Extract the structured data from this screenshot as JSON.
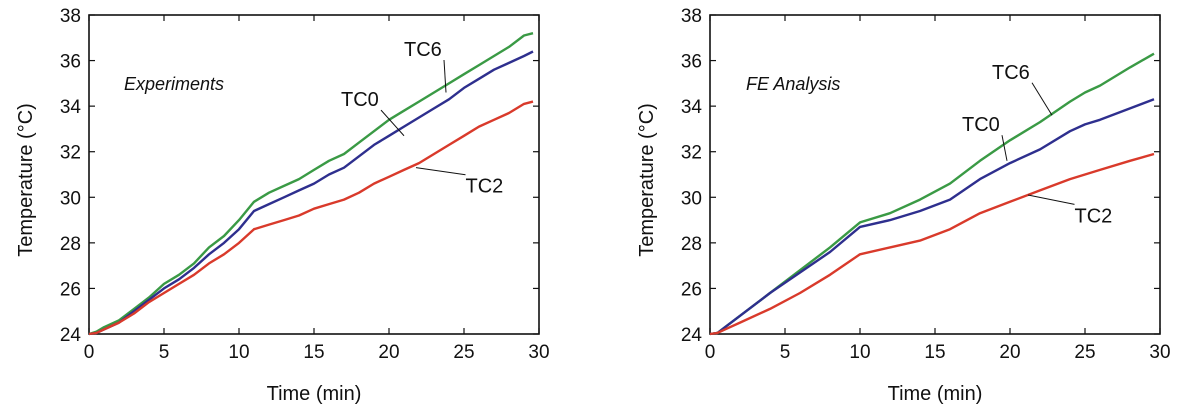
{
  "chart_data": [
    {
      "type": "line",
      "title": "Experiments",
      "xlabel": "Time (min)",
      "ylabel": "Temperature (°C)",
      "xlim": [
        0,
        30
      ],
      "ylim": [
        24,
        38
      ],
      "xticks": [
        0,
        5,
        10,
        15,
        20,
        25,
        30
      ],
      "yticks": [
        24,
        26,
        28,
        30,
        32,
        34,
        36,
        38
      ],
      "grid": false,
      "series": [
        {
          "name": "TC6",
          "color": "#3a9a45",
          "label_at": [
            21.0,
            36.2
          ],
          "leader_to": [
            23.8,
            34.6
          ],
          "x": [
            0,
            0.5,
            1,
            2,
            3,
            4,
            5,
            6,
            7,
            8,
            9,
            10,
            11,
            12,
            13,
            14,
            15,
            16,
            17,
            18,
            19,
            20,
            21,
            22,
            23,
            24,
            25,
            26,
            27,
            28,
            29,
            29.6
          ],
          "y": [
            24.0,
            24.1,
            24.3,
            24.6,
            25.1,
            25.6,
            26.2,
            26.6,
            27.1,
            27.8,
            28.3,
            29.0,
            29.8,
            30.2,
            30.5,
            30.8,
            31.2,
            31.6,
            31.9,
            32.4,
            32.9,
            33.4,
            33.8,
            34.2,
            34.6,
            35.0,
            35.4,
            35.8,
            36.2,
            36.6,
            37.1,
            37.2
          ]
        },
        {
          "name": "TC0",
          "color": "#2e2f8e",
          "label_at": [
            16.8,
            34.0
          ],
          "leader_to": [
            21.0,
            32.7
          ],
          "x": [
            0,
            0.5,
            1,
            2,
            3,
            4,
            5,
            6,
            7,
            8,
            9,
            10,
            11,
            12,
            13,
            14,
            15,
            16,
            17,
            18,
            19,
            20,
            21,
            22,
            23,
            24,
            25,
            26,
            27,
            28,
            29,
            29.6
          ],
          "y": [
            24.0,
            24.05,
            24.2,
            24.5,
            25.0,
            25.5,
            26.0,
            26.4,
            26.9,
            27.5,
            28.0,
            28.6,
            29.4,
            29.7,
            30.0,
            30.3,
            30.6,
            31.0,
            31.3,
            31.8,
            32.3,
            32.7,
            33.1,
            33.5,
            33.9,
            34.3,
            34.8,
            35.2,
            35.6,
            35.9,
            36.2,
            36.4
          ]
        },
        {
          "name": "TC2",
          "color": "#d93a2b",
          "label_at": [
            25.1,
            30.2
          ],
          "leader_to": [
            21.8,
            31.3
          ],
          "x": [
            0,
            0.5,
            1,
            2,
            3,
            4,
            5,
            6,
            7,
            8,
            9,
            10,
            11,
            12,
            13,
            14,
            15,
            16,
            17,
            18,
            19,
            20,
            21,
            22,
            23,
            24,
            25,
            26,
            27,
            28,
            29,
            29.6
          ],
          "y": [
            24.0,
            24.05,
            24.2,
            24.5,
            24.9,
            25.4,
            25.8,
            26.2,
            26.6,
            27.1,
            27.5,
            28.0,
            28.6,
            28.8,
            29.0,
            29.2,
            29.5,
            29.7,
            29.9,
            30.2,
            30.6,
            30.9,
            31.2,
            31.5,
            31.9,
            32.3,
            32.7,
            33.1,
            33.4,
            33.7,
            34.1,
            34.2
          ]
        }
      ]
    },
    {
      "type": "line",
      "title": "FE Analysis",
      "xlabel": "Time (min)",
      "ylabel": "Temperature (°C)",
      "xlim": [
        0,
        30
      ],
      "ylim": [
        24,
        38
      ],
      "xticks": [
        0,
        5,
        10,
        15,
        20,
        25,
        30
      ],
      "yticks": [
        24,
        26,
        28,
        30,
        32,
        34,
        36,
        38
      ],
      "grid": false,
      "series": [
        {
          "name": "TC6",
          "color": "#3a9a45",
          "label_at": [
            18.8,
            35.2
          ],
          "leader_to": [
            22.8,
            33.6
          ],
          "x": [
            0,
            0.5,
            1,
            2,
            4,
            6,
            8,
            10,
            12,
            14,
            16,
            18,
            20,
            22,
            24,
            25,
            26,
            28,
            29.6
          ],
          "y": [
            24.0,
            24.05,
            24.3,
            24.8,
            25.8,
            26.8,
            27.8,
            28.9,
            29.3,
            29.9,
            30.6,
            31.6,
            32.5,
            33.3,
            34.2,
            34.6,
            34.9,
            35.7,
            36.3
          ]
        },
        {
          "name": "TC0",
          "color": "#2e2f8e",
          "label_at": [
            16.8,
            32.9
          ],
          "leader_to": [
            19.8,
            31.6
          ],
          "x": [
            0,
            0.5,
            1,
            2,
            4,
            6,
            8,
            10,
            12,
            14,
            16,
            18,
            20,
            22,
            24,
            25,
            26,
            28,
            29.6
          ],
          "y": [
            24.0,
            24.05,
            24.3,
            24.8,
            25.8,
            26.7,
            27.6,
            28.7,
            29.0,
            29.4,
            29.9,
            30.8,
            31.5,
            32.1,
            32.9,
            33.2,
            33.4,
            33.9,
            34.3
          ]
        },
        {
          "name": "TC2",
          "color": "#d93a2b",
          "label_at": [
            24.3,
            28.9
          ],
          "leader_to": [
            21.2,
            30.1
          ],
          "x": [
            0,
            0.5,
            1,
            2,
            4,
            6,
            8,
            10,
            12,
            14,
            16,
            18,
            20,
            22,
            24,
            25,
            26,
            28,
            29.6
          ],
          "y": [
            24.0,
            24.05,
            24.2,
            24.5,
            25.1,
            25.8,
            26.6,
            27.5,
            27.8,
            28.1,
            28.6,
            29.3,
            29.8,
            30.3,
            30.8,
            31.0,
            31.2,
            31.6,
            31.9
          ]
        }
      ]
    }
  ]
}
